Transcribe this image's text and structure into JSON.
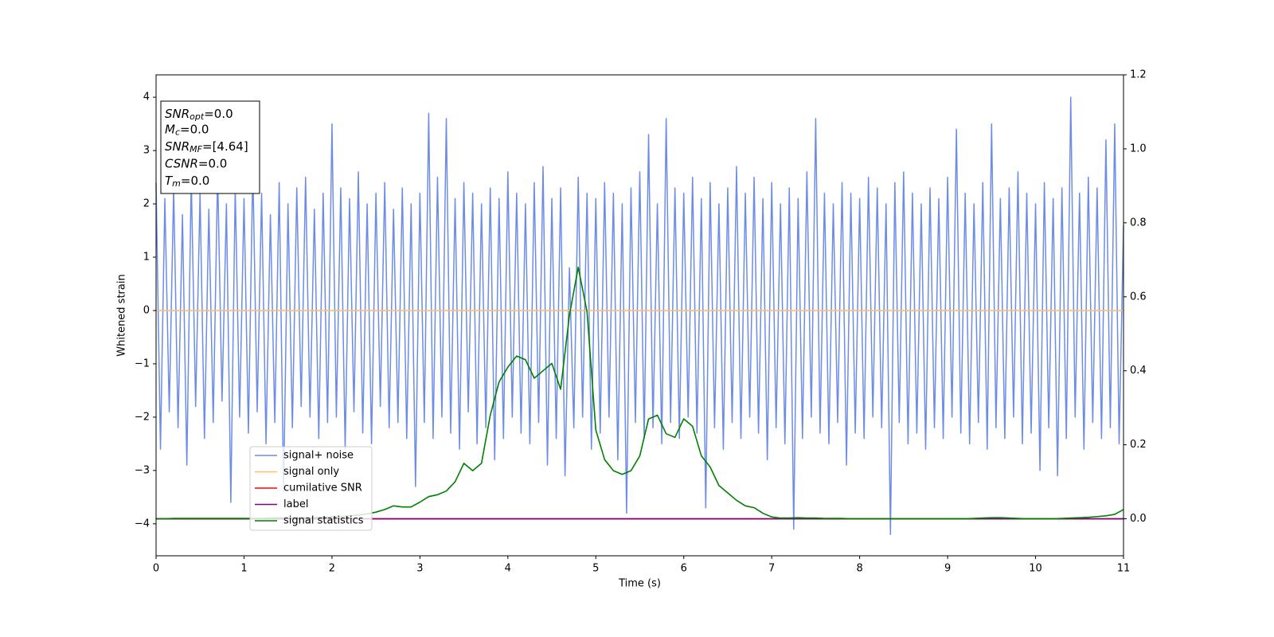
{
  "chart_data": {
    "type": "line",
    "xlabel": "Time (s)",
    "ylabel": "Whitened strain",
    "xlim": [
      0,
      11
    ],
    "xticks": [
      0,
      1,
      2,
      3,
      4,
      5,
      6,
      7,
      8,
      9,
      10,
      11
    ],
    "ylim": [
      -4.6,
      4.42
    ],
    "yticks": [
      {
        "value": -4,
        "label": "−4"
      },
      {
        "value": -3,
        "label": "−3"
      },
      {
        "value": -2,
        "label": "−2"
      },
      {
        "value": -1,
        "label": "−1"
      },
      0,
      1,
      2,
      3,
      4
    ],
    "y2lim": [
      -0.1,
      1.2
    ],
    "y2ticks": [
      {
        "value": 0,
        "label": "0.0"
      },
      0.2,
      0.4,
      0.6,
      0.8,
      {
        "value": 1,
        "label": "1.0"
      },
      1.2
    ],
    "legend": "lower left",
    "annotation": [
      {
        "main": "SNR",
        "sub": "opt",
        "rest": "=0.0"
      },
      {
        "main": "M",
        "sub": "c",
        "rest": "=0.0"
      },
      {
        "main": "SNR",
        "sub": "MF",
        "rest": "=[4.64]"
      },
      {
        "main": "CSNR",
        "rest": "=0.0"
      },
      {
        "main": "T",
        "sub": "m",
        "rest": "=0.0"
      }
    ],
    "series": [
      {
        "name": "signal+ noise",
        "color": "#6d8ce6",
        "axis": "y",
        "x": [
          0,
          0.05,
          0.1,
          0.15,
          0.2,
          0.25,
          0.3,
          0.35,
          0.4,
          0.45,
          0.5,
          0.55,
          0.6,
          0.65,
          0.7,
          0.75,
          0.8,
          0.85,
          0.9,
          0.95,
          1,
          1.05,
          1.1,
          1.15,
          1.2,
          1.25,
          1.3,
          1.35,
          1.4,
          1.45,
          1.5,
          1.55,
          1.6,
          1.65,
          1.7,
          1.75,
          1.8,
          1.85,
          1.9,
          1.95,
          2,
          2.05,
          2.1,
          2.15,
          2.2,
          2.25,
          2.3,
          2.35,
          2.4,
          2.45,
          2.5,
          2.55,
          2.6,
          2.65,
          2.7,
          2.75,
          2.8,
          2.85,
          2.9,
          2.95,
          3,
          3.05,
          3.1,
          3.15,
          3.2,
          3.25,
          3.3,
          3.35,
          3.4,
          3.45,
          3.5,
          3.55,
          3.6,
          3.65,
          3.7,
          3.75,
          3.8,
          3.85,
          3.9,
          3.95,
          4,
          4.05,
          4.1,
          4.15,
          4.2,
          4.25,
          4.3,
          4.35,
          4.4,
          4.45,
          4.5,
          4.55,
          4.6,
          4.65,
          4.7,
          4.75,
          4.8,
          4.85,
          4.9,
          4.95,
          5,
          5.05,
          5.1,
          5.15,
          5.2,
          5.25,
          5.3,
          5.35,
          5.4,
          5.45,
          5.5,
          5.55,
          5.6,
          5.65,
          5.7,
          5.75,
          5.8,
          5.85,
          5.9,
          5.95,
          6,
          6.05,
          6.1,
          6.15,
          6.2,
          6.25,
          6.3,
          6.35,
          6.4,
          6.45,
          6.5,
          6.55,
          6.6,
          6.65,
          6.7,
          6.75,
          6.8,
          6.85,
          6.9,
          6.95,
          7,
          7.05,
          7.1,
          7.15,
          7.2,
          7.25,
          7.3,
          7.35,
          7.4,
          7.45,
          7.5,
          7.55,
          7.6,
          7.65,
          7.7,
          7.75,
          7.8,
          7.85,
          7.9,
          7.95,
          8,
          8.05,
          8.1,
          8.15,
          8.2,
          8.25,
          8.3,
          8.35,
          8.4,
          8.45,
          8.5,
          8.55,
          8.6,
          8.65,
          8.7,
          8.75,
          8.8,
          8.85,
          8.9,
          8.95,
          9,
          9.05,
          9.1,
          9.15,
          9.2,
          9.25,
          9.3,
          9.35,
          9.4,
          9.45,
          9.5,
          9.55,
          9.6,
          9.65,
          9.7,
          9.75,
          9.8,
          9.85,
          9.9,
          9.95,
          10,
          10.05,
          10.1,
          10.15,
          10.2,
          10.25,
          10.3,
          10.35,
          10.4,
          10.45,
          10.5,
          10.55,
          10.6,
          10.65,
          10.7,
          10.75,
          10.8,
          10.85,
          10.9,
          10.95,
          11
        ],
        "values": [
          2.4,
          -2.6,
          2.1,
          -1.9,
          2.3,
          -2.2,
          1.8,
          -2.9,
          2.5,
          -1.8,
          2.2,
          -2.4,
          1.9,
          -2.1,
          2.6,
          -1.7,
          2.0,
          -3.6,
          2.3,
          -2.0,
          2.1,
          -2.3,
          2.7,
          -1.9,
          2.2,
          -2.5,
          1.8,
          -2.1,
          2.4,
          -3.4,
          2.0,
          -2.2,
          2.3,
          -1.8,
          2.5,
          -2.0,
          1.9,
          -2.4,
          2.2,
          -2.1,
          3.5,
          -2.0,
          2.3,
          -2.6,
          2.1,
          -1.9,
          2.6,
          -2.3,
          2.0,
          -2.5,
          2.2,
          -1.8,
          2.4,
          -2.2,
          1.9,
          -2.1,
          2.3,
          -2.4,
          2.0,
          -3.3,
          2.2,
          -2.1,
          3.7,
          -2.4,
          2.5,
          -2.0,
          3.6,
          -2.3,
          2.1,
          -2.6,
          2.4,
          -1.9,
          2.2,
          -2.5,
          2.0,
          -2.2,
          2.3,
          -2.8,
          2.1,
          -2.4,
          2.6,
          -2.0,
          2.2,
          -2.3,
          2.0,
          -2.5,
          2.4,
          -2.1,
          2.7,
          -2.9,
          2.1,
          -2.4,
          2.3,
          -3.1,
          0.8,
          -2.2,
          2.5,
          -2.0,
          2.2,
          -2.6,
          2.1,
          -2.3,
          2.4,
          -2.0,
          2.2,
          -2.8,
          2.0,
          -3.8,
          2.3,
          -2.1,
          2.6,
          -2.4,
          3.3,
          -2.2,
          2.0,
          -2.5,
          3.6,
          -2.1,
          2.3,
          -2.4,
          2.2,
          -2.0,
          2.5,
          -2.3,
          2.1,
          -3.7,
          2.4,
          -2.2,
          2.0,
          -2.6,
          2.3,
          -2.1,
          2.7,
          -2.4,
          2.2,
          -2.0,
          2.5,
          -2.3,
          2.1,
          -2.8,
          2.4,
          -2.2,
          2.0,
          -2.5,
          2.3,
          -4.1,
          2.1,
          -2.4,
          2.6,
          -2.0,
          3.6,
          -2.3,
          2.2,
          -2.5,
          2.0,
          -2.1,
          2.4,
          -2.9,
          2.2,
          -2.3,
          2.1,
          -2.4,
          2.5,
          -2.0,
          2.3,
          -2.2,
          2.0,
          -4.2,
          2.4,
          -2.1,
          2.6,
          -2.5,
          2.2,
          -2.3,
          2.0,
          -2.6,
          2.3,
          -2.2,
          2.1,
          -2.4,
          2.5,
          -2.0,
          3.4,
          -2.3,
          2.2,
          -2.5,
          2.0,
          -2.1,
          2.4,
          -2.6,
          3.5,
          -2.2,
          2.1,
          -2.4,
          2.3,
          -2.0,
          2.6,
          -2.5,
          2.2,
          -2.3,
          2.0,
          -3.0,
          2.4,
          -2.2,
          2.1,
          -3.1,
          2.3,
          -2.4,
          4.0,
          -2.0,
          2.2,
          -2.6,
          2.5,
          -2.1,
          2.3,
          -2.4,
          3.2,
          -2.2,
          3.5,
          -2.5,
          1.6
        ]
      },
      {
        "name": "signal only",
        "color": "#ffbf6b",
        "axis": "y",
        "x": [
          0,
          11
        ],
        "values": [
          0,
          0
        ]
      },
      {
        "name": "cumilative SNR",
        "color": "#ff0000",
        "axis": "y2",
        "x": [
          0,
          11
        ],
        "values": [
          0,
          0
        ]
      },
      {
        "name": "label",
        "color": "#800080",
        "axis": "y2",
        "x": [
          0,
          11
        ],
        "values": [
          0,
          0
        ]
      },
      {
        "name": "signal statistics",
        "color": "#008000",
        "axis": "y2",
        "x": [
          0,
          0.1,
          0.2,
          0.3,
          0.4,
          0.5,
          0.6,
          0.7,
          0.8,
          0.9,
          1,
          1.1,
          1.2,
          1.3,
          1.4,
          1.5,
          1.6,
          1.7,
          1.8,
          1.9,
          2,
          2.1,
          2.2,
          2.3,
          2.4,
          2.5,
          2.6,
          2.7,
          2.8,
          2.9,
          3,
          3.1,
          3.2,
          3.3,
          3.4,
          3.5,
          3.6,
          3.7,
          3.8,
          3.9,
          4,
          4.1,
          4.2,
          4.3,
          4.4,
          4.5,
          4.6,
          4.7,
          4.8,
          4.9,
          5,
          5.1,
          5.2,
          5.3,
          5.4,
          5.5,
          5.6,
          5.7,
          5.8,
          5.9,
          6,
          6.1,
          6.2,
          6.3,
          6.4,
          6.5,
          6.6,
          6.7,
          6.8,
          6.9,
          7,
          7.1,
          7.2,
          7.3,
          7.4,
          7.5,
          7.6,
          7.7,
          7.8,
          7.9,
          8,
          8.1,
          8.2,
          8.3,
          8.4,
          8.5,
          8.6,
          8.7,
          8.8,
          8.9,
          9,
          9.1,
          9.2,
          9.3,
          9.4,
          9.5,
          9.6,
          9.7,
          9.8,
          9.9,
          10,
          10.1,
          10.2,
          10.3,
          10.4,
          10.5,
          10.6,
          10.7,
          10.8,
          10.9,
          11
        ],
        "values": [
          0,
          0,
          0.001,
          0.001,
          0.001,
          0.001,
          0.001,
          0.001,
          0.001,
          0.001,
          0.001,
          0.001,
          0.001,
          0.002,
          0.002,
          0.002,
          0.003,
          0.003,
          0.003,
          0.004,
          0.005,
          0.006,
          0.008,
          0.01,
          0.013,
          0.018,
          0.025,
          0.035,
          0.032,
          0.032,
          0.045,
          0.06,
          0.065,
          0.075,
          0.1,
          0.15,
          0.13,
          0.15,
          0.28,
          0.37,
          0.41,
          0.44,
          0.43,
          0.38,
          0.4,
          0.42,
          0.35,
          0.55,
          0.68,
          0.56,
          0.24,
          0.16,
          0.13,
          0.12,
          0.13,
          0.17,
          0.27,
          0.28,
          0.23,
          0.22,
          0.27,
          0.25,
          0.17,
          0.14,
          0.09,
          0.07,
          0.05,
          0.035,
          0.03,
          0.015,
          0.005,
          0.002,
          0.002,
          0.003,
          0.002,
          0.002,
          0.001,
          0.001,
          0.001,
          0,
          0,
          0,
          0,
          0,
          0,
          0,
          0,
          0,
          0,
          0,
          0,
          0,
          0,
          0.001,
          0.002,
          0.003,
          0.003,
          0.002,
          0.001,
          0,
          0,
          0,
          0,
          0.001,
          0.002,
          0.003,
          0.004,
          0.006,
          0.008,
          0.012,
          0.025
        ]
      }
    ]
  }
}
